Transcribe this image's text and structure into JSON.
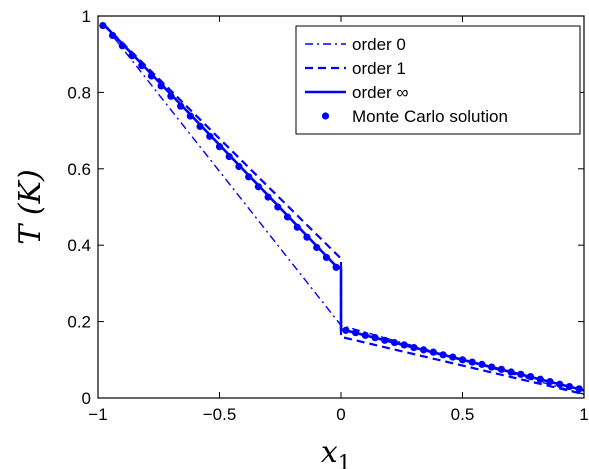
{
  "chart_data": {
    "type": "line",
    "x_tick_labels": [
      "−1",
      "−0.5",
      "0",
      "0.5",
      "1"
    ],
    "y_tick_labels": [
      "0",
      "0.2",
      "0.4",
      "0.6",
      "0.8",
      "1"
    ],
    "x_ticks": [
      -1,
      -0.5,
      0,
      0.5,
      1
    ],
    "y_ticks": [
      0,
      0.2,
      0.4,
      0.6,
      0.8,
      1
    ],
    "xlim": [
      -1,
      1
    ],
    "ylim": [
      0,
      1
    ],
    "xlabel": {
      "base": "x",
      "sub": "1"
    },
    "ylabel": "T (K)",
    "grid": false,
    "legend_position": "top-right",
    "color": "#0000ff",
    "series": [
      {
        "name": "order 0",
        "style": "dashdot",
        "x": [
          -0.98,
          0.0,
          0.0,
          1.0
        ],
        "y": [
          0.98,
          0.19,
          0.19,
          0.01
        ]
      },
      {
        "name": "order 1",
        "style": "dashed",
        "x": [
          -0.98,
          0.0,
          0.0,
          1.0
        ],
        "y": [
          0.98,
          0.365,
          0.16,
          0.01
        ]
      },
      {
        "name": "order ∞",
        "style": "solid",
        "x": [
          -0.98,
          -0.02,
          0.0,
          0.0,
          1.0
        ],
        "y": [
          0.98,
          0.345,
          0.34,
          0.18,
          0.02
        ]
      },
      {
        "name": "Monte Carlo solution",
        "style": "dots",
        "x": [
          -0.98,
          -0.94,
          -0.9,
          -0.86,
          -0.82,
          -0.78,
          -0.74,
          -0.7,
          -0.66,
          -0.62,
          -0.58,
          -0.54,
          -0.5,
          -0.46,
          -0.42,
          -0.38,
          -0.34,
          -0.3,
          -0.26,
          -0.22,
          -0.18,
          -0.14,
          -0.1,
          -0.06,
          -0.02,
          0.02,
          0.06,
          0.1,
          0.14,
          0.18,
          0.22,
          0.26,
          0.3,
          0.34,
          0.38,
          0.42,
          0.46,
          0.5,
          0.54,
          0.58,
          0.62,
          0.66,
          0.7,
          0.74,
          0.78,
          0.82,
          0.86,
          0.9,
          0.94,
          0.98
        ],
        "y": [
          0.975,
          0.949,
          0.922,
          0.896,
          0.87,
          0.843,
          0.817,
          0.79,
          0.764,
          0.738,
          0.711,
          0.685,
          0.658,
          0.632,
          0.606,
          0.579,
          0.553,
          0.526,
          0.5,
          0.474,
          0.447,
          0.421,
          0.394,
          0.368,
          0.342,
          0.177,
          0.171,
          0.164,
          0.158,
          0.151,
          0.145,
          0.139,
          0.132,
          0.126,
          0.12,
          0.113,
          0.107,
          0.1,
          0.094,
          0.088,
          0.081,
          0.075,
          0.068,
          0.062,
          0.056,
          0.049,
          0.043,
          0.036,
          0.03,
          0.024
        ]
      }
    ]
  }
}
